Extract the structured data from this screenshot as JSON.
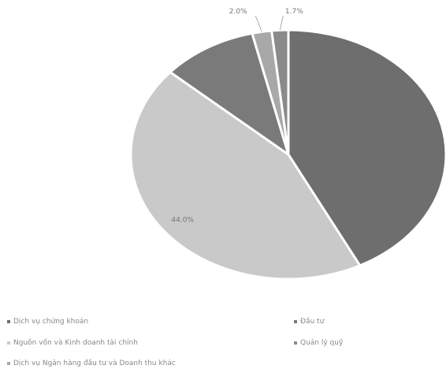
{
  "chart_data": {
    "type": "pie",
    "slices": [
      {
        "label": "Dịch vụ chứng khoán",
        "value": 42.5,
        "color": "#6e6e6e",
        "data_label": ""
      },
      {
        "label": "Nguồn vốn và Kinh doanh tài chính",
        "value": 44.0,
        "color": "#c9c9c9",
        "data_label": "44.0%"
      },
      {
        "label": "Đầu tư",
        "value": 9.8,
        "color": "#7a7a7a",
        "data_label": ""
      },
      {
        "label": "Dịch vụ Ngân hàng đầu tư và Doanh thu khác",
        "value": 2.0,
        "color": "#a8a8a8",
        "data_label": "2.0%"
      },
      {
        "label": "Quản lý quỹ",
        "value": 1.7,
        "color": "#8a8a8a",
        "data_label": "1.7%"
      }
    ]
  },
  "legend": [
    {
      "text": "Dịch vụ chứng khoán",
      "color": "#6e6e6e"
    },
    {
      "text": "Đầu tư",
      "color": "#7a7a7a"
    },
    {
      "text": "Nguồn vốn và Kinh doanh tài chính",
      "color": "#c9c9c9"
    },
    {
      "text": "Quản lý quỹ",
      "color": "#8a8a8a"
    },
    {
      "text": "Dịch vụ Ngân hàng đầu tư và Doanh thu khác",
      "color": "#a8a8a8"
    }
  ]
}
